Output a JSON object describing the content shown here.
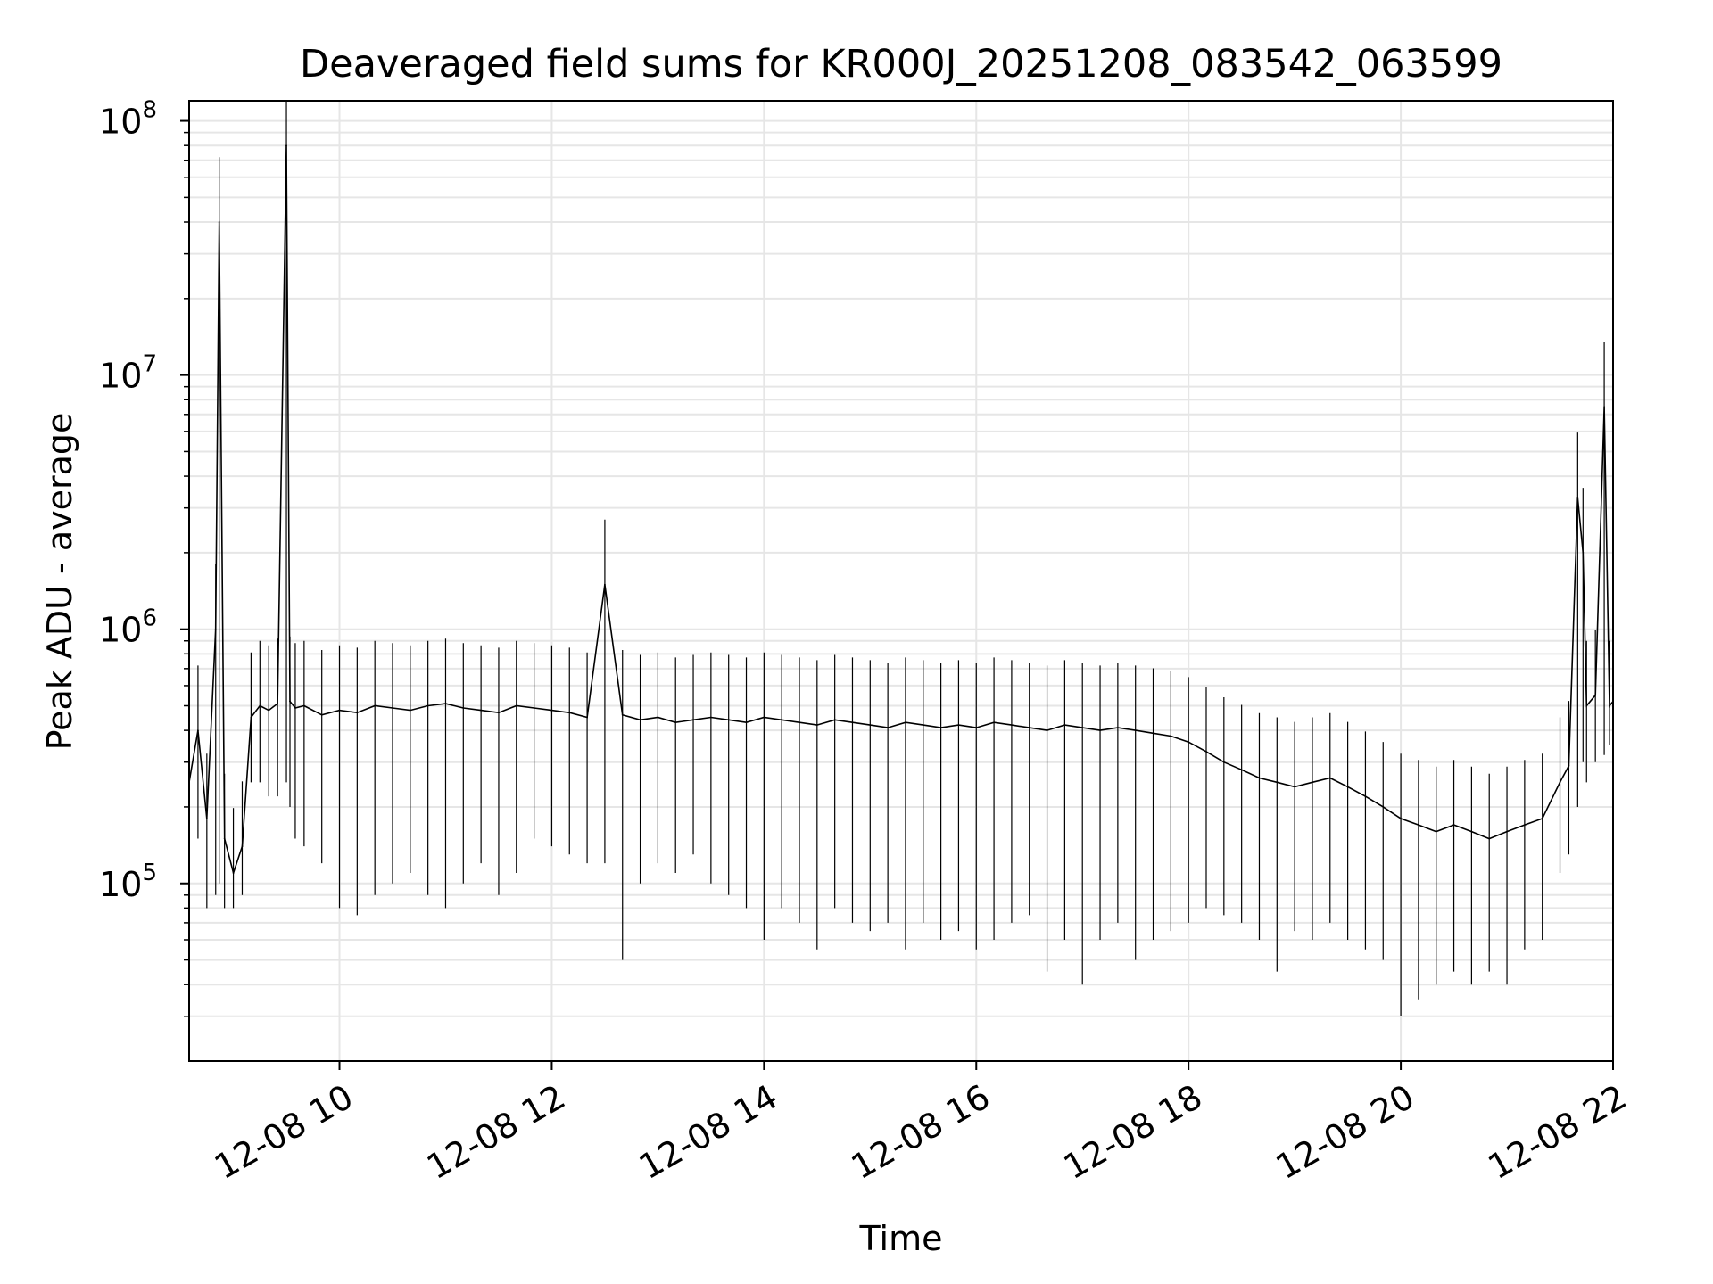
{
  "chart_data": {
    "type": "line",
    "title": "Deaveraged field sums for KR000J_20251208_083542_063599",
    "xlabel": "Time",
    "ylabel": "Peak ADU - average",
    "yscale": "log",
    "grid": true,
    "legend": "none",
    "line_color": "#000000",
    "grid_color": "#e6e6e6",
    "x_range": [
      "2025-12-08 08:35",
      "2025-12-08 22:00"
    ],
    "ylim": [
      20000,
      120000000
    ],
    "x_ticks": [
      {
        "x": "2025-12-08 10:00",
        "label": "12-08 10"
      },
      {
        "x": "2025-12-08 12:00",
        "label": "12-08 12"
      },
      {
        "x": "2025-12-08 14:00",
        "label": "12-08 14"
      },
      {
        "x": "2025-12-08 16:00",
        "label": "12-08 16"
      },
      {
        "x": "2025-12-08 18:00",
        "label": "12-08 18"
      },
      {
        "x": "2025-12-08 20:00",
        "label": "12-08 20"
      },
      {
        "x": "2025-12-08 22:00",
        "label": "12-08 22"
      }
    ],
    "y_ticks": [
      {
        "y": 100000,
        "label": "10",
        "exp": "5"
      },
      {
        "y": 1000000,
        "label": "10",
        "exp": "6"
      },
      {
        "y": 10000000,
        "label": "10",
        "exp": "7"
      },
      {
        "y": 100000000,
        "label": "10",
        "exp": "8"
      }
    ],
    "series": [
      {
        "x": [
          "2025-12-08 08:35",
          "2025-12-08 08:40",
          "2025-12-08 08:45",
          "2025-12-08 08:50",
          "2025-12-08 08:52",
          "2025-12-08 08:55",
          "2025-12-08 09:00",
          "2025-12-08 09:05",
          "2025-12-08 09:10",
          "2025-12-08 09:15",
          "2025-12-08 09:20",
          "2025-12-08 09:25",
          "2025-12-08 09:30",
          "2025-12-08 09:32",
          "2025-12-08 09:35",
          "2025-12-08 09:40",
          "2025-12-08 09:50",
          "2025-12-08 10:00",
          "2025-12-08 10:10",
          "2025-12-08 10:20",
          "2025-12-08 10:30",
          "2025-12-08 10:40",
          "2025-12-08 10:50",
          "2025-12-08 11:00",
          "2025-12-08 11:10",
          "2025-12-08 11:20",
          "2025-12-08 11:30",
          "2025-12-08 11:40",
          "2025-12-08 11:50",
          "2025-12-08 12:00",
          "2025-12-08 12:10",
          "2025-12-08 12:20",
          "2025-12-08 12:30",
          "2025-12-08 12:40",
          "2025-12-08 12:50",
          "2025-12-08 13:00",
          "2025-12-08 13:10",
          "2025-12-08 13:20",
          "2025-12-08 13:30",
          "2025-12-08 13:40",
          "2025-12-08 13:50",
          "2025-12-08 14:00",
          "2025-12-08 14:10",
          "2025-12-08 14:20",
          "2025-12-08 14:30",
          "2025-12-08 14:40",
          "2025-12-08 14:50",
          "2025-12-08 15:00",
          "2025-12-08 15:10",
          "2025-12-08 15:20",
          "2025-12-08 15:30",
          "2025-12-08 15:40",
          "2025-12-08 15:50",
          "2025-12-08 16:00",
          "2025-12-08 16:10",
          "2025-12-08 16:20",
          "2025-12-08 16:30",
          "2025-12-08 16:40",
          "2025-12-08 16:50",
          "2025-12-08 17:00",
          "2025-12-08 17:10",
          "2025-12-08 17:20",
          "2025-12-08 17:30",
          "2025-12-08 17:40",
          "2025-12-08 17:50",
          "2025-12-08 18:00",
          "2025-12-08 18:10",
          "2025-12-08 18:20",
          "2025-12-08 18:30",
          "2025-12-08 18:40",
          "2025-12-08 18:50",
          "2025-12-08 19:00",
          "2025-12-08 19:10",
          "2025-12-08 19:20",
          "2025-12-08 19:30",
          "2025-12-08 19:40",
          "2025-12-08 19:50",
          "2025-12-08 20:00",
          "2025-12-08 20:10",
          "2025-12-08 20:20",
          "2025-12-08 20:30",
          "2025-12-08 20:40",
          "2025-12-08 20:50",
          "2025-12-08 21:00",
          "2025-12-08 21:10",
          "2025-12-08 21:20",
          "2025-12-08 21:30",
          "2025-12-08 21:35",
          "2025-12-08 21:40",
          "2025-12-08 21:43",
          "2025-12-08 21:45",
          "2025-12-08 21:50",
          "2025-12-08 21:55",
          "2025-12-08 21:58",
          "2025-12-08 22:00"
        ],
        "values": [
          250000,
          400000,
          180000,
          1000000,
          40000000,
          150000,
          110000,
          140000,
          450000,
          500000,
          480000,
          510000,
          80000000,
          520000,
          490000,
          500000,
          460000,
          480000,
          470000,
          500000,
          490000,
          480000,
          500000,
          510000,
          490000,
          480000,
          470000,
          500000,
          490000,
          480000,
          470000,
          450000,
          1500000,
          460000,
          440000,
          450000,
          430000,
          440000,
          450000,
          440000,
          430000,
          450000,
          440000,
          430000,
          420000,
          440000,
          430000,
          420000,
          410000,
          430000,
          420000,
          410000,
          420000,
          410000,
          430000,
          420000,
          410000,
          400000,
          420000,
          410000,
          400000,
          410000,
          400000,
          390000,
          380000,
          360000,
          330000,
          300000,
          280000,
          260000,
          250000,
          240000,
          250000,
          260000,
          240000,
          220000,
          200000,
          180000,
          170000,
          160000,
          170000,
          160000,
          150000,
          160000,
          170000,
          180000,
          250000,
          290000,
          3300000,
          2000000,
          500000,
          550000,
          7500000,
          500000,
          520000
        ],
        "min_values": [
          90000,
          150000,
          80000,
          90000,
          100000,
          80000,
          80000,
          90000,
          250000,
          250000,
          220000,
          220000,
          250000,
          200000,
          150000,
          140000,
          120000,
          80000,
          75000,
          90000,
          100000,
          110000,
          90000,
          80000,
          100000,
          120000,
          90000,
          110000,
          150000,
          140000,
          130000,
          120000,
          120000,
          50000,
          100000,
          120000,
          110000,
          130000,
          100000,
          90000,
          80000,
          60000,
          80000,
          70000,
          55000,
          80000,
          70000,
          65000,
          70000,
          55000,
          70000,
          60000,
          65000,
          55000,
          60000,
          70000,
          75000,
          45000,
          60000,
          40000,
          60000,
          70000,
          50000,
          60000,
          65000,
          70000,
          80000,
          75000,
          70000,
          60000,
          45000,
          65000,
          60000,
          70000,
          60000,
          55000,
          50000,
          30000,
          35000,
          40000,
          45000,
          40000,
          45000,
          40000,
          55000,
          60000,
          110000,
          130000,
          200000,
          300000,
          250000,
          300000,
          320000,
          350000,
          380000
        ]
      }
    ]
  }
}
